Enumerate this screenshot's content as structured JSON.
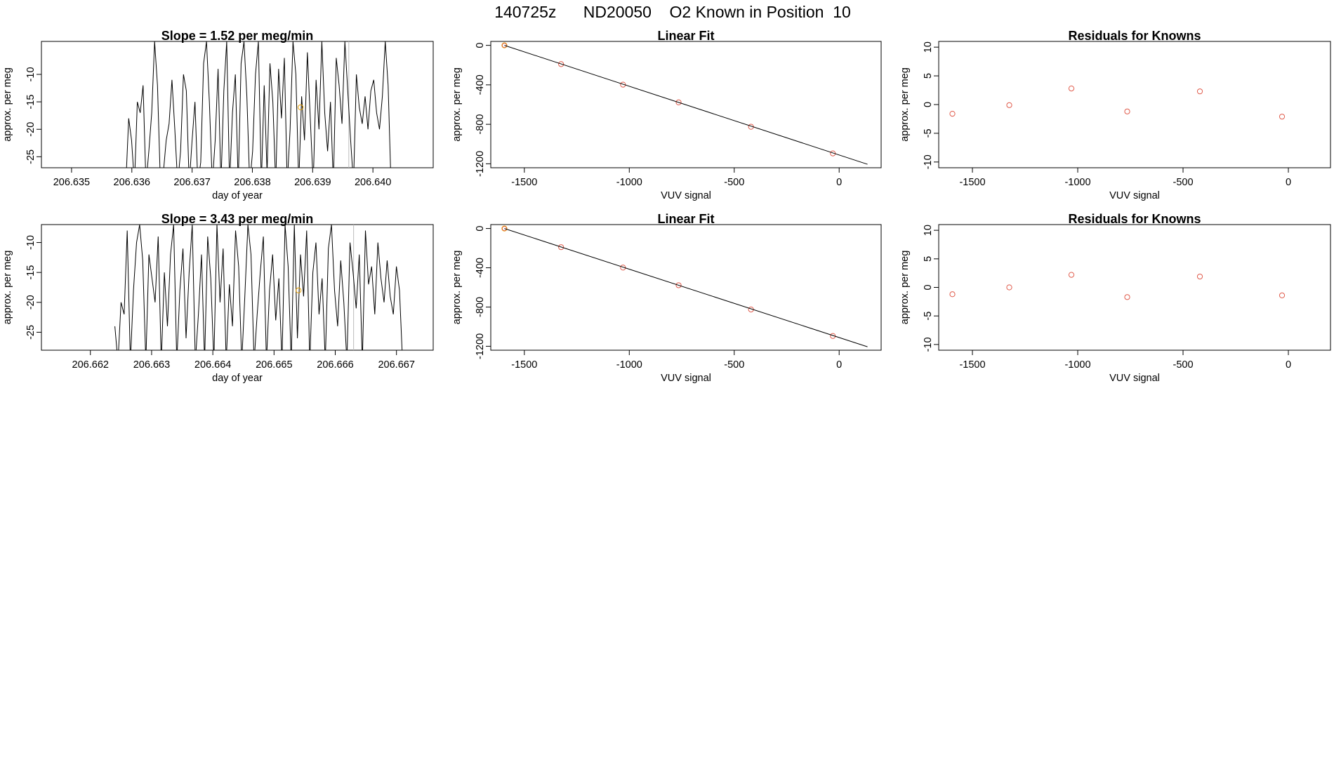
{
  "figure_title": {
    "text": "140725z      ND20050    O2 Known in Position  10"
  },
  "colors": {
    "frame": "#000000",
    "series_line": "#000000",
    "point_known": "#e05a4a",
    "point_highlight": "#e69f00",
    "vertical_marker": "#bbbbbb"
  },
  "chart_data": [
    {
      "id": "timeseries-1",
      "type": "line",
      "title": "Slope =  1.52  per meg/min",
      "xlabel": "day of year",
      "ylabel": "approx. per meg",
      "xlim": [
        206.6345,
        206.641
      ],
      "ylim": [
        -27,
        -4
      ],
      "xticks": [
        206.635,
        206.636,
        206.637,
        206.638,
        206.639,
        206.64
      ],
      "xtick_labels": [
        "206.635",
        "206.636",
        "206.637",
        "206.638",
        "206.639",
        "206.640"
      ],
      "yticks": [
        -25,
        -20,
        -15,
        -10
      ],
      "ytick_labels": [
        "-25",
        "-20",
        "-15",
        "-10"
      ],
      "x_start": 206.6359,
      "x_end": 206.6403,
      "values": [
        -30,
        -18,
        -22,
        -30,
        -15,
        -17,
        -12,
        -30,
        -24,
        -17,
        -4,
        -12,
        -30,
        -28,
        -22,
        -19,
        -11,
        -20,
        -30,
        -24,
        -10,
        -13,
        -30,
        -22,
        -15,
        -30,
        -26,
        -8,
        -4,
        -15,
        -30,
        -22,
        -9,
        -30,
        -13,
        -4,
        -30,
        -17,
        -10,
        -30,
        -8,
        -4,
        -14,
        -30,
        -24,
        -10,
        -4,
        -30,
        -12,
        -28,
        -8,
        -15,
        -30,
        -9,
        -18,
        -7,
        -30,
        -20,
        -4,
        -10,
        -30,
        -14,
        -22,
        -6,
        -18,
        -30,
        -11,
        -20,
        -4,
        -17,
        -24,
        -15,
        -30,
        -7,
        -12,
        -19,
        -4,
        -13,
        -22,
        -30,
        -10,
        -16,
        -19,
        -14,
        -20,
        -13,
        -11,
        -17,
        -20,
        -14,
        -4,
        -12,
        -30
      ],
      "highlight_point": {
        "x": 206.6388,
        "y": -16
      },
      "vlines": [
        206.6396
      ]
    },
    {
      "id": "linearfit-1",
      "type": "scatter",
      "title": "Linear Fit",
      "xlabel": "VUV signal",
      "ylabel": "approx. per meg",
      "xlim": [
        -1660,
        200
      ],
      "ylim": [
        -1240,
        40
      ],
      "xticks": [
        -1500,
        -1000,
        -500,
        0
      ],
      "xtick_labels": [
        "-1500",
        "-1000",
        "-500",
        "0"
      ],
      "yticks": [
        0,
        -400,
        -800,
        -1200
      ],
      "ytick_labels": [
        "0",
        "-400",
        "-800",
        "-1200"
      ],
      "points": [
        {
          "x": -1595,
          "y": 0
        },
        {
          "x": -1325,
          "y": -190
        },
        {
          "x": -1030,
          "y": -398
        },
        {
          "x": -765,
          "y": -578
        },
        {
          "x": -420,
          "y": -825
        },
        {
          "x": -30,
          "y": -1095
        }
      ],
      "highlight_index": 0,
      "fit_line": {
        "x": [
          -1595,
          135
        ],
        "y": [
          0,
          -1205
        ]
      }
    },
    {
      "id": "residuals-1",
      "type": "scatter",
      "title": "Residuals for Knowns",
      "xlabel": "VUV signal",
      "ylabel": "approx. per meg",
      "xlim": [
        -1660,
        200
      ],
      "ylim": [
        -11,
        11
      ],
      "xticks": [
        -1500,
        -1000,
        -500,
        0
      ],
      "xtick_labels": [
        "-1500",
        "-1000",
        "-500",
        "0"
      ],
      "yticks": [
        10,
        5,
        0,
        -5,
        -10
      ],
      "ytick_labels": [
        "10",
        "5",
        "0",
        "-5",
        "-10"
      ],
      "points": [
        {
          "x": -1595,
          "y": -1.6
        },
        {
          "x": -1325,
          "y": -0.1
        },
        {
          "x": -1030,
          "y": 2.8
        },
        {
          "x": -765,
          "y": -1.2
        },
        {
          "x": -420,
          "y": 2.3
        },
        {
          "x": -30,
          "y": -2.1
        }
      ]
    },
    {
      "id": "timeseries-2",
      "type": "line",
      "title": "Slope =  3.43  per meg/min",
      "xlabel": "day of year",
      "ylabel": "approx. per meg",
      "xlim": [
        206.6612,
        206.6676
      ],
      "ylim": [
        -28,
        -7
      ],
      "xticks": [
        206.662,
        206.663,
        206.664,
        206.665,
        206.666,
        206.667
      ],
      "xtick_labels": [
        "206.662",
        "206.663",
        "206.664",
        "206.665",
        "206.666",
        "206.667"
      ],
      "yticks": [
        -25,
        -20,
        -15,
        -10
      ],
      "ytick_labels": [
        "-25",
        "-20",
        "-15",
        "-10"
      ],
      "x_start": 206.6624,
      "x_end": 206.6671,
      "values": [
        -24,
        -30,
        -20,
        -22,
        -8,
        -30,
        -18,
        -10,
        -7,
        -13,
        -30,
        -12,
        -16,
        -20,
        -9,
        -30,
        -15,
        -24,
        -12,
        -7,
        -30,
        -18,
        -11,
        -26,
        -15,
        -7,
        -30,
        -22,
        -12,
        -30,
        -9,
        -16,
        -30,
        -7,
        -20,
        -11,
        -30,
        -17,
        -24,
        -8,
        -14,
        -30,
        -19,
        -7,
        -12,
        -30,
        -22,
        -15,
        -9,
        -30,
        -18,
        -12,
        -23,
        -16,
        -30,
        -7,
        -14,
        -30,
        -7,
        -26,
        -12,
        -19,
        -8,
        -30,
        -15,
        -10,
        -22,
        -16,
        -30,
        -11,
        -7,
        -18,
        -24,
        -13,
        -20,
        -30,
        -10,
        -15,
        -21,
        -12,
        -30,
        -8,
        -17,
        -14,
        -22,
        -10,
        -16,
        -20,
        -13,
        -19,
        -22,
        -14,
        -18,
        -30
      ],
      "highlight_point": {
        "x": 206.6654,
        "y": -18
      },
      "vlines": [
        206.6663
      ]
    },
    {
      "id": "linearfit-2",
      "type": "scatter",
      "title": "Linear Fit",
      "xlabel": "VUV signal",
      "ylabel": "approx. per meg",
      "xlim": [
        -1660,
        200
      ],
      "ylim": [
        -1240,
        40
      ],
      "xticks": [
        -1500,
        -1000,
        -500,
        0
      ],
      "xtick_labels": [
        "-1500",
        "-1000",
        "-500",
        "0"
      ],
      "yticks": [
        0,
        -400,
        -800,
        -1200
      ],
      "ytick_labels": [
        "0",
        "-400",
        "-800",
        "-1200"
      ],
      "points": [
        {
          "x": -1595,
          "y": 0
        },
        {
          "x": -1325,
          "y": -190
        },
        {
          "x": -1030,
          "y": -398
        },
        {
          "x": -765,
          "y": -578
        },
        {
          "x": -420,
          "y": -825
        },
        {
          "x": -30,
          "y": -1095
        }
      ],
      "highlight_index": 0,
      "fit_line": {
        "x": [
          -1595,
          135
        ],
        "y": [
          0,
          -1205
        ]
      }
    },
    {
      "id": "residuals-2",
      "type": "scatter",
      "title": "Residuals for Knowns",
      "xlabel": "VUV signal",
      "ylabel": "approx. per meg",
      "xlim": [
        -1660,
        200
      ],
      "ylim": [
        -11,
        11
      ],
      "xticks": [
        -1500,
        -1000,
        -500,
        0
      ],
      "xtick_labels": [
        "-1500",
        "-1000",
        "-500",
        "0"
      ],
      "yticks": [
        10,
        5,
        0,
        -5,
        -10
      ],
      "ytick_labels": [
        "10",
        "5",
        "0",
        "-5",
        "-10"
      ],
      "points": [
        {
          "x": -1595,
          "y": -1.2
        },
        {
          "x": -1325,
          "y": 0.0
        },
        {
          "x": -1030,
          "y": 2.2
        },
        {
          "x": -765,
          "y": -1.7
        },
        {
          "x": -420,
          "y": 1.9
        },
        {
          "x": -30,
          "y": -1.4
        }
      ]
    }
  ]
}
